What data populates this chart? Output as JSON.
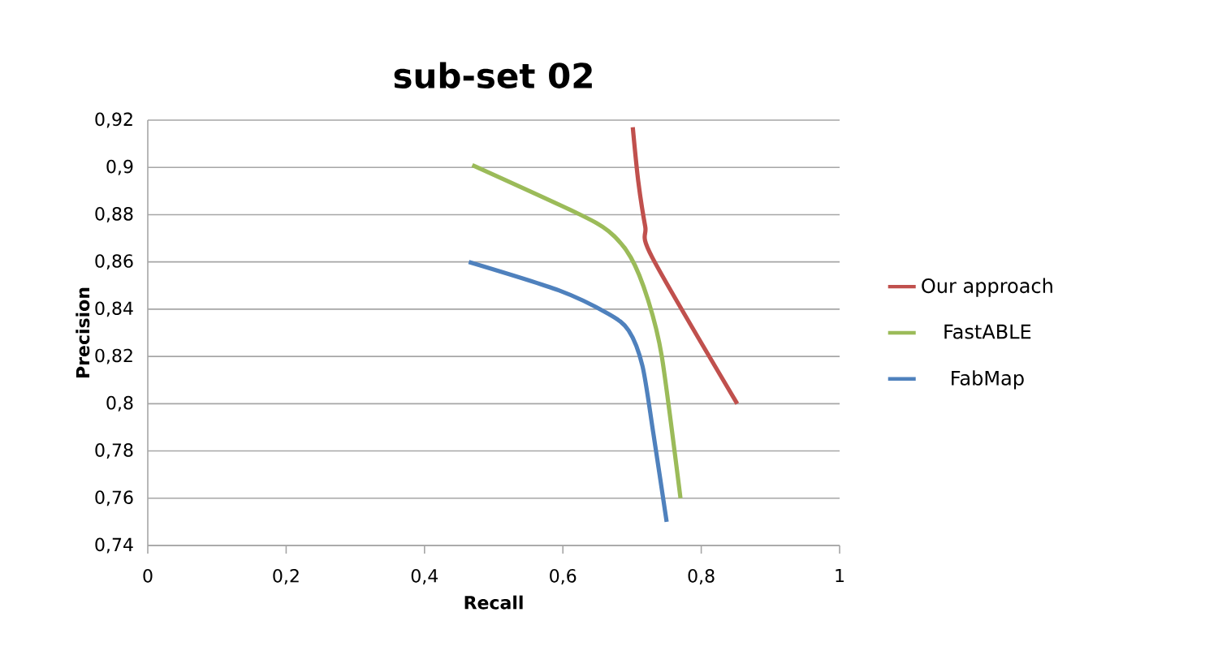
{
  "chart_data": {
    "type": "line",
    "title": "sub-set 02",
    "xlabel": "Recall",
    "ylabel": "Precision",
    "xlim": [
      0,
      1
    ],
    "xticks": [
      {
        "value": 0,
        "label": "0"
      },
      {
        "value": 0.2,
        "label": "0,2"
      },
      {
        "value": 0.4,
        "label": "0,4"
      },
      {
        "value": 0.6,
        "label": "0,6"
      },
      {
        "value": 0.8,
        "label": "0,8"
      },
      {
        "value": 1,
        "label": "1"
      }
    ],
    "ylim": [
      0.74,
      0.92
    ],
    "yticks": [
      {
        "value": 0.74,
        "label": "0,74"
      },
      {
        "value": 0.76,
        "label": "0,76"
      },
      {
        "value": 0.78,
        "label": "0,78"
      },
      {
        "value": 0.8,
        "label": "0,8"
      },
      {
        "value": 0.82,
        "label": "0,82"
      },
      {
        "value": 0.84,
        "label": "0,84"
      },
      {
        "value": 0.86,
        "label": "0,86"
      },
      {
        "value": 0.88,
        "label": "0,88"
      },
      {
        "value": 0.9,
        "label": "0,9"
      },
      {
        "value": 0.92,
        "label": "0,92"
      }
    ],
    "grid": "y",
    "legend": "right",
    "marker": "none",
    "line_style": "solid",
    "series": [
      {
        "name": "Our approach",
        "color": "#c0504d",
        "x": [
          0.701,
          0.709,
          0.719,
          0.729,
          0.852
        ],
        "values": [
          0.917,
          0.894,
          0.875,
          0.862,
          0.8
        ]
      },
      {
        "name": "FastABLE",
        "color": "#9bbb59",
        "x": [
          0.469,
          0.618,
          0.666,
          0.698,
          0.723,
          0.743,
          0.77
        ],
        "values": [
          0.901,
          0.881,
          0.873,
          0.862,
          0.844,
          0.82,
          0.76
        ]
      },
      {
        "name": "FabMap",
        "color": "#4f81bd",
        "x": [
          0.464,
          0.594,
          0.666,
          0.695,
          0.715,
          0.731,
          0.75
        ],
        "values": [
          0.86,
          0.848,
          0.838,
          0.831,
          0.816,
          0.787,
          0.75
        ]
      }
    ]
  }
}
